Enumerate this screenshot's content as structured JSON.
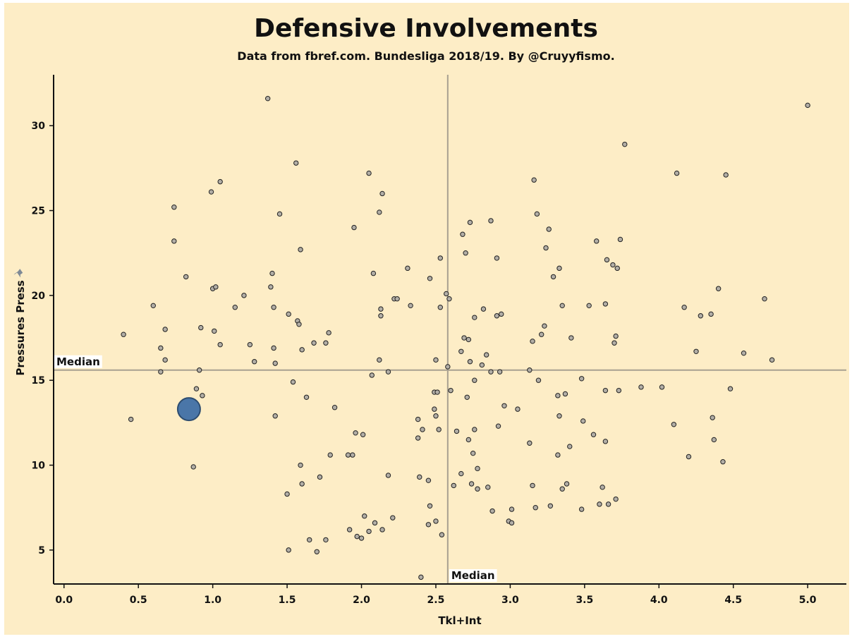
{
  "chart_data": {
    "type": "scatter",
    "title": "Defensive Involvements",
    "subtitle": "Data from fbref.com. Bundesliga 2018/19. By @Cruyyfismo.",
    "xlabel": "Tkl+Int",
    "ylabel": "Pressures Press",
    "xlim": [
      -0.07,
      5.26
    ],
    "ylim": [
      3.0,
      33.0
    ],
    "x_ticks": [
      "0.0",
      "0.5",
      "1.0",
      "1.5",
      "2.0",
      "2.5",
      "3.0",
      "3.5",
      "4.0",
      "4.5",
      "5.0"
    ],
    "y_ticks": [
      "5",
      "10",
      "15",
      "20",
      "25",
      "30"
    ],
    "x_tick_values": [
      0,
      0.5,
      1,
      1.5,
      2,
      2.5,
      3,
      3.5,
      4,
      4.5,
      5
    ],
    "y_tick_values": [
      5,
      10,
      15,
      20,
      25,
      30
    ],
    "median_x": 2.58,
    "median_y": 15.6,
    "median_label": "Median",
    "grid": false,
    "colors": {
      "background": "#fdedc6",
      "point": "#b2aea6",
      "highlight": "#4a76a8",
      "median_line": "#a8a090"
    },
    "highlight": {
      "x": 0.84,
      "y": 13.3
    },
    "points": [
      [
        0.4,
        17.7
      ],
      [
        0.45,
        12.7
      ],
      [
        0.6,
        19.4
      ],
      [
        0.65,
        16.9
      ],
      [
        0.65,
        15.5
      ],
      [
        0.68,
        16.2
      ],
      [
        0.68,
        18.0
      ],
      [
        0.74,
        25.2
      ],
      [
        0.74,
        23.2
      ],
      [
        0.82,
        21.1
      ],
      [
        0.87,
        9.9
      ],
      [
        0.89,
        14.5
      ],
      [
        0.91,
        15.6
      ],
      [
        0.92,
        18.1
      ],
      [
        0.93,
        14.1
      ],
      [
        0.99,
        26.1
      ],
      [
        1.0,
        20.4
      ],
      [
        1.01,
        17.9
      ],
      [
        1.02,
        20.5
      ],
      [
        1.05,
        26.7
      ],
      [
        1.05,
        17.1
      ],
      [
        1.15,
        19.3
      ],
      [
        1.21,
        20.0
      ],
      [
        1.25,
        17.1
      ],
      [
        1.28,
        16.1
      ],
      [
        1.37,
        31.6
      ],
      [
        1.39,
        20.5
      ],
      [
        1.4,
        21.3
      ],
      [
        1.41,
        16.9
      ],
      [
        1.41,
        19.3
      ],
      [
        1.42,
        16.0
      ],
      [
        1.42,
        12.9
      ],
      [
        1.45,
        24.8
      ],
      [
        1.5,
        8.3
      ],
      [
        1.51,
        18.9
      ],
      [
        1.51,
        5.0
      ],
      [
        1.54,
        14.9
      ],
      [
        1.56,
        27.8
      ],
      [
        1.57,
        18.5
      ],
      [
        1.58,
        18.3
      ],
      [
        1.59,
        22.7
      ],
      [
        1.59,
        10.0
      ],
      [
        1.6,
        16.8
      ],
      [
        1.6,
        8.9
      ],
      [
        1.63,
        14.0
      ],
      [
        1.65,
        5.6
      ],
      [
        1.68,
        17.2
      ],
      [
        1.7,
        4.9
      ],
      [
        1.72,
        9.3
      ],
      [
        1.76,
        17.2
      ],
      [
        1.76,
        5.6
      ],
      [
        1.78,
        17.8
      ],
      [
        1.79,
        10.6
      ],
      [
        1.82,
        13.4
      ],
      [
        1.91,
        10.6
      ],
      [
        1.92,
        6.2
      ],
      [
        1.94,
        10.6
      ],
      [
        1.95,
        24.0
      ],
      [
        1.96,
        11.9
      ],
      [
        1.97,
        5.8
      ],
      [
        2.0,
        5.7
      ],
      [
        2.01,
        11.8
      ],
      [
        2.02,
        7.0
      ],
      [
        2.05,
        27.2
      ],
      [
        2.05,
        6.1
      ],
      [
        2.07,
        15.3
      ],
      [
        2.08,
        21.3
      ],
      [
        2.09,
        6.6
      ],
      [
        2.12,
        24.9
      ],
      [
        2.12,
        16.2
      ],
      [
        2.13,
        19.2
      ],
      [
        2.13,
        18.8
      ],
      [
        2.14,
        26.0
      ],
      [
        2.14,
        6.2
      ],
      [
        2.18,
        15.5
      ],
      [
        2.18,
        9.4
      ],
      [
        2.21,
        6.9
      ],
      [
        2.22,
        19.8
      ],
      [
        2.24,
        19.8
      ],
      [
        2.31,
        21.6
      ],
      [
        2.33,
        19.4
      ],
      [
        2.38,
        12.7
      ],
      [
        2.38,
        11.6
      ],
      [
        2.39,
        9.3
      ],
      [
        2.4,
        3.4
      ],
      [
        2.41,
        12.1
      ],
      [
        2.45,
        9.1
      ],
      [
        2.45,
        6.5
      ],
      [
        2.46,
        21.0
      ],
      [
        2.46,
        7.6
      ],
      [
        2.49,
        14.3
      ],
      [
        2.49,
        13.3
      ],
      [
        2.5,
        16.2
      ],
      [
        2.5,
        12.9
      ],
      [
        2.5,
        6.7
      ],
      [
        2.51,
        14.3
      ],
      [
        2.52,
        12.1
      ],
      [
        2.53,
        22.2
      ],
      [
        2.53,
        19.3
      ],
      [
        2.54,
        5.9
      ],
      [
        2.57,
        20.1
      ],
      [
        2.58,
        15.8
      ],
      [
        2.59,
        19.8
      ],
      [
        2.6,
        14.4
      ],
      [
        2.62,
        8.8
      ],
      [
        2.64,
        12.0
      ],
      [
        2.67,
        16.7
      ],
      [
        2.67,
        9.5
      ],
      [
        2.68,
        23.6
      ],
      [
        2.69,
        17.5
      ],
      [
        2.7,
        22.5
      ],
      [
        2.71,
        14.0
      ],
      [
        2.72,
        17.4
      ],
      [
        2.72,
        11.5
      ],
      [
        2.73,
        24.3
      ],
      [
        2.73,
        16.1
      ],
      [
        2.74,
        8.9
      ],
      [
        2.75,
        10.7
      ],
      [
        2.76,
        18.7
      ],
      [
        2.76,
        15.0
      ],
      [
        2.76,
        12.1
      ],
      [
        2.78,
        9.8
      ],
      [
        2.78,
        8.6
      ],
      [
        2.81,
        15.9
      ],
      [
        2.82,
        19.2
      ],
      [
        2.84,
        16.5
      ],
      [
        2.85,
        8.7
      ],
      [
        2.87,
        24.4
      ],
      [
        2.87,
        15.5
      ],
      [
        2.88,
        7.3
      ],
      [
        2.91,
        22.2
      ],
      [
        2.91,
        18.8
      ],
      [
        2.92,
        12.3
      ],
      [
        2.93,
        15.5
      ],
      [
        2.94,
        18.9
      ],
      [
        2.96,
        13.5
      ],
      [
        2.99,
        6.7
      ],
      [
        3.01,
        6.6
      ],
      [
        3.01,
        7.4
      ],
      [
        3.05,
        13.3
      ],
      [
        3.13,
        15.6
      ],
      [
        3.13,
        11.3
      ],
      [
        3.15,
        8.8
      ],
      [
        3.15,
        17.3
      ],
      [
        3.16,
        26.8
      ],
      [
        3.17,
        7.5
      ],
      [
        3.18,
        24.8
      ],
      [
        3.19,
        15.0
      ],
      [
        3.21,
        17.7
      ],
      [
        3.23,
        18.2
      ],
      [
        3.24,
        22.8
      ],
      [
        3.26,
        23.9
      ],
      [
        3.27,
        7.6
      ],
      [
        3.29,
        21.1
      ],
      [
        3.32,
        10.6
      ],
      [
        3.32,
        14.1
      ],
      [
        3.33,
        12.9
      ],
      [
        3.33,
        21.6
      ],
      [
        3.35,
        19.4
      ],
      [
        3.35,
        8.6
      ],
      [
        3.37,
        14.2
      ],
      [
        3.38,
        8.9
      ],
      [
        3.4,
        11.1
      ],
      [
        3.41,
        17.5
      ],
      [
        3.48,
        15.1
      ],
      [
        3.48,
        7.4
      ],
      [
        3.49,
        12.6
      ],
      [
        3.53,
        19.4
      ],
      [
        3.56,
        11.8
      ],
      [
        3.58,
        23.2
      ],
      [
        3.6,
        7.7
      ],
      [
        3.62,
        8.7
      ],
      [
        3.64,
        19.5
      ],
      [
        3.64,
        14.4
      ],
      [
        3.64,
        11.4
      ],
      [
        3.65,
        22.1
      ],
      [
        3.66,
        7.7
      ],
      [
        3.69,
        21.8
      ],
      [
        3.7,
        17.2
      ],
      [
        3.71,
        17.6
      ],
      [
        3.71,
        8.0
      ],
      [
        3.72,
        21.6
      ],
      [
        3.73,
        14.4
      ],
      [
        3.74,
        23.3
      ],
      [
        3.77,
        28.9
      ],
      [
        3.88,
        14.6
      ],
      [
        4.02,
        14.6
      ],
      [
        4.1,
        12.4
      ],
      [
        4.12,
        27.2
      ],
      [
        4.17,
        19.3
      ],
      [
        4.2,
        10.5
      ],
      [
        4.25,
        16.7
      ],
      [
        4.28,
        18.8
      ],
      [
        4.35,
        18.9
      ],
      [
        4.36,
        12.8
      ],
      [
        4.37,
        11.5
      ],
      [
        4.4,
        20.4
      ],
      [
        4.43,
        10.2
      ],
      [
        4.45,
        27.1
      ],
      [
        4.48,
        14.5
      ],
      [
        4.57,
        16.6
      ],
      [
        4.71,
        19.8
      ],
      [
        4.76,
        16.2
      ],
      [
        5.0,
        31.2
      ]
    ]
  }
}
